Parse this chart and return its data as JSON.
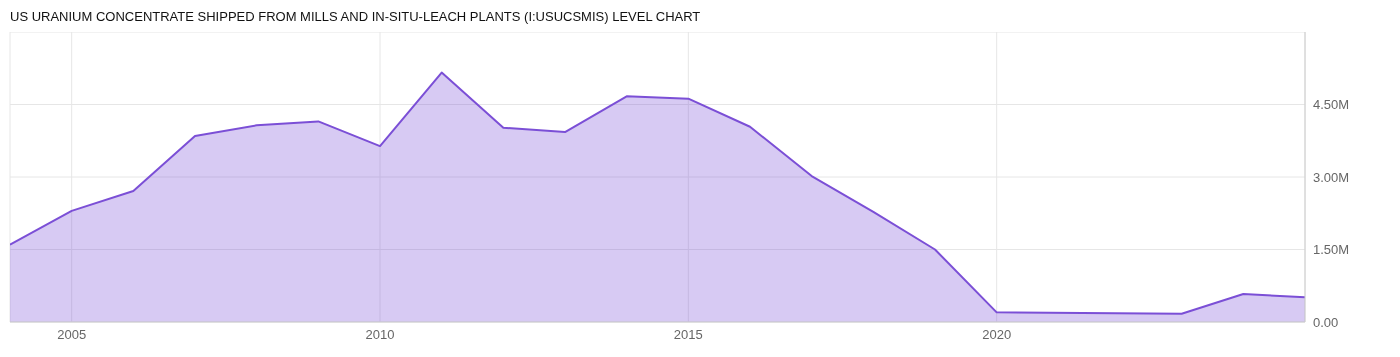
{
  "chart_data": {
    "type": "area",
    "title": "US URANIUM CONCENTRATE SHIPPED FROM MILLS AND IN-SITU-LEACH PLANTS (I:USUCSMIS) LEVEL CHART",
    "x": [
      2004,
      2005,
      2006,
      2007,
      2008,
      2009,
      2010,
      2011,
      2012,
      2013,
      2014,
      2015,
      2016,
      2017,
      2018,
      2019,
      2020,
      2023,
      2024,
      2025
    ],
    "series": [
      {
        "color": "#7b4fd6",
        "values": [
          1600000,
          2300000,
          2710000,
          3850000,
          4070000,
          4150000,
          3640000,
          5160000,
          4020000,
          3930000,
          4670000,
          4620000,
          4040000,
          3020000,
          2280000,
          1500000,
          200000,
          170000,
          580000,
          510000
        ]
      }
    ],
    "xlim": [
      2004,
      2025
    ],
    "xticks": [
      2005,
      2010,
      2015,
      2020
    ],
    "ylim": [
      0,
      6000000
    ],
    "yticks": [
      {
        "value": 0,
        "label": "0.00"
      },
      {
        "value": 1500000,
        "label": "1.50M"
      },
      {
        "value": 3000000,
        "label": "3.00M"
      },
      {
        "value": 4500000,
        "label": "4.50M"
      }
    ],
    "grid": true,
    "legend": false
  }
}
